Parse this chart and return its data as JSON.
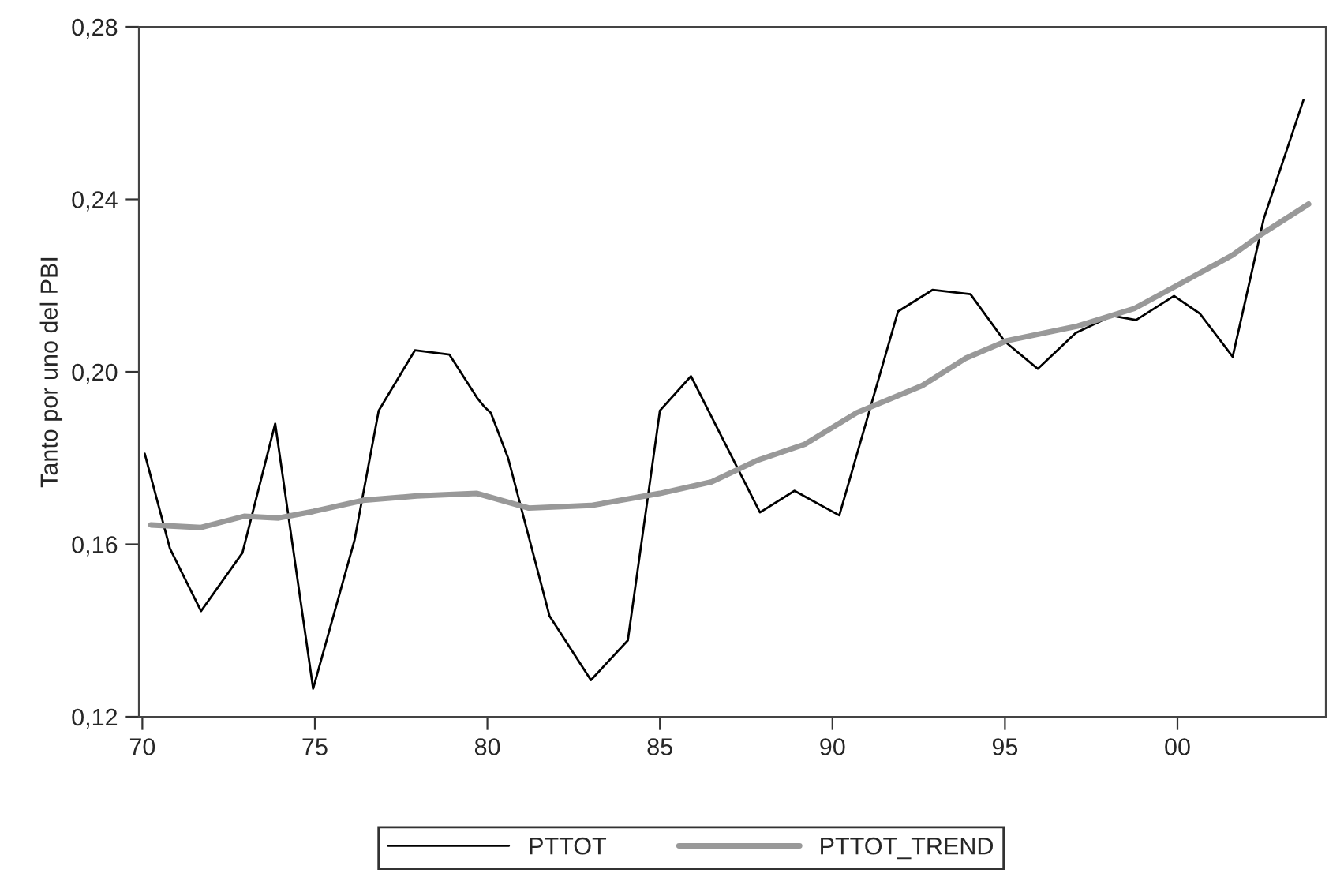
{
  "chart_data": {
    "type": "line",
    "ylabel": "Tanto por uno del PBI",
    "xlim": [
      1969.9,
      2004.3
    ],
    "ylim": [
      0.12,
      0.28
    ],
    "xticks": [
      {
        "value": 1970,
        "label": "70"
      },
      {
        "value": 1975,
        "label": "75"
      },
      {
        "value": 1980,
        "label": "80"
      },
      {
        "value": 1985,
        "label": "85"
      },
      {
        "value": 1990,
        "label": "90"
      },
      {
        "value": 1995,
        "label": "95"
      },
      {
        "value": 2000,
        "label": "00"
      }
    ],
    "yticks": [
      {
        "value": 0.12,
        "label": "0,12"
      },
      {
        "value": 0.16,
        "label": "0,16"
      },
      {
        "value": 0.2,
        "label": "0,20"
      },
      {
        "value": 0.24,
        "label": "0,24"
      },
      {
        "value": 0.28,
        "label": "0,28"
      }
    ],
    "grid": false,
    "legend": "bottom",
    "marker": "none",
    "line_style": "solid",
    "series": [
      {
        "name": "PTTOT",
        "color": "#000000",
        "x": [
          1970.07,
          1970.8,
          1971.7,
          1972.9,
          1973.85,
          1974.95,
          1976.15,
          1976.85,
          1977.9,
          1978.9,
          1979.7,
          1979.9,
          1980.1,
          1980.6,
          1981.8,
          1983.0,
          1984.07,
          1985.0,
          1985.9,
          1987.9,
          1988.9,
          1990.2,
          1991.9,
          1992.9,
          1994.0,
          1995.0,
          1995.95,
          1997.05,
          1998.1,
          1998.8,
          1999.9,
          2000.65,
          2001.6,
          2002.5,
          2003.65
        ],
        "values": [
          0.181,
          0.159,
          0.1445,
          0.158,
          0.188,
          0.1265,
          0.161,
          0.191,
          0.205,
          0.204,
          0.194,
          0.192,
          0.1905,
          0.18,
          0.1434,
          0.1285,
          0.1377,
          0.191,
          0.199,
          0.1674,
          0.1724,
          0.1667,
          0.214,
          0.219,
          0.218,
          0.207,
          0.2007,
          0.209,
          0.213,
          0.212,
          0.2176,
          0.2135,
          0.2035,
          0.2355,
          0.263
        ]
      },
      {
        "name": "PTTOT_TREND",
        "color": "#999999",
        "x": [
          1970.25,
          1971.7,
          1972.95,
          1973.95,
          1974.95,
          1976.4,
          1977.95,
          1979.7,
          1981.2,
          1983.0,
          1985.0,
          1986.5,
          1987.8,
          1989.2,
          1990.7,
          1992.6,
          1993.85,
          1995.05,
          1997.1,
          1998.75,
          2000.0,
          2001.6,
          2002.45,
          2003.8
        ],
        "values": [
          0.1645,
          0.1639,
          0.1665,
          0.1661,
          0.1676,
          0.1702,
          0.1712,
          0.1718,
          0.1684,
          0.169,
          0.1718,
          0.1745,
          0.1794,
          0.1832,
          0.1905,
          0.1968,
          0.2031,
          0.2072,
          0.2106,
          0.2147,
          0.2201,
          0.2271,
          0.232,
          0.2389
        ]
      }
    ]
  }
}
